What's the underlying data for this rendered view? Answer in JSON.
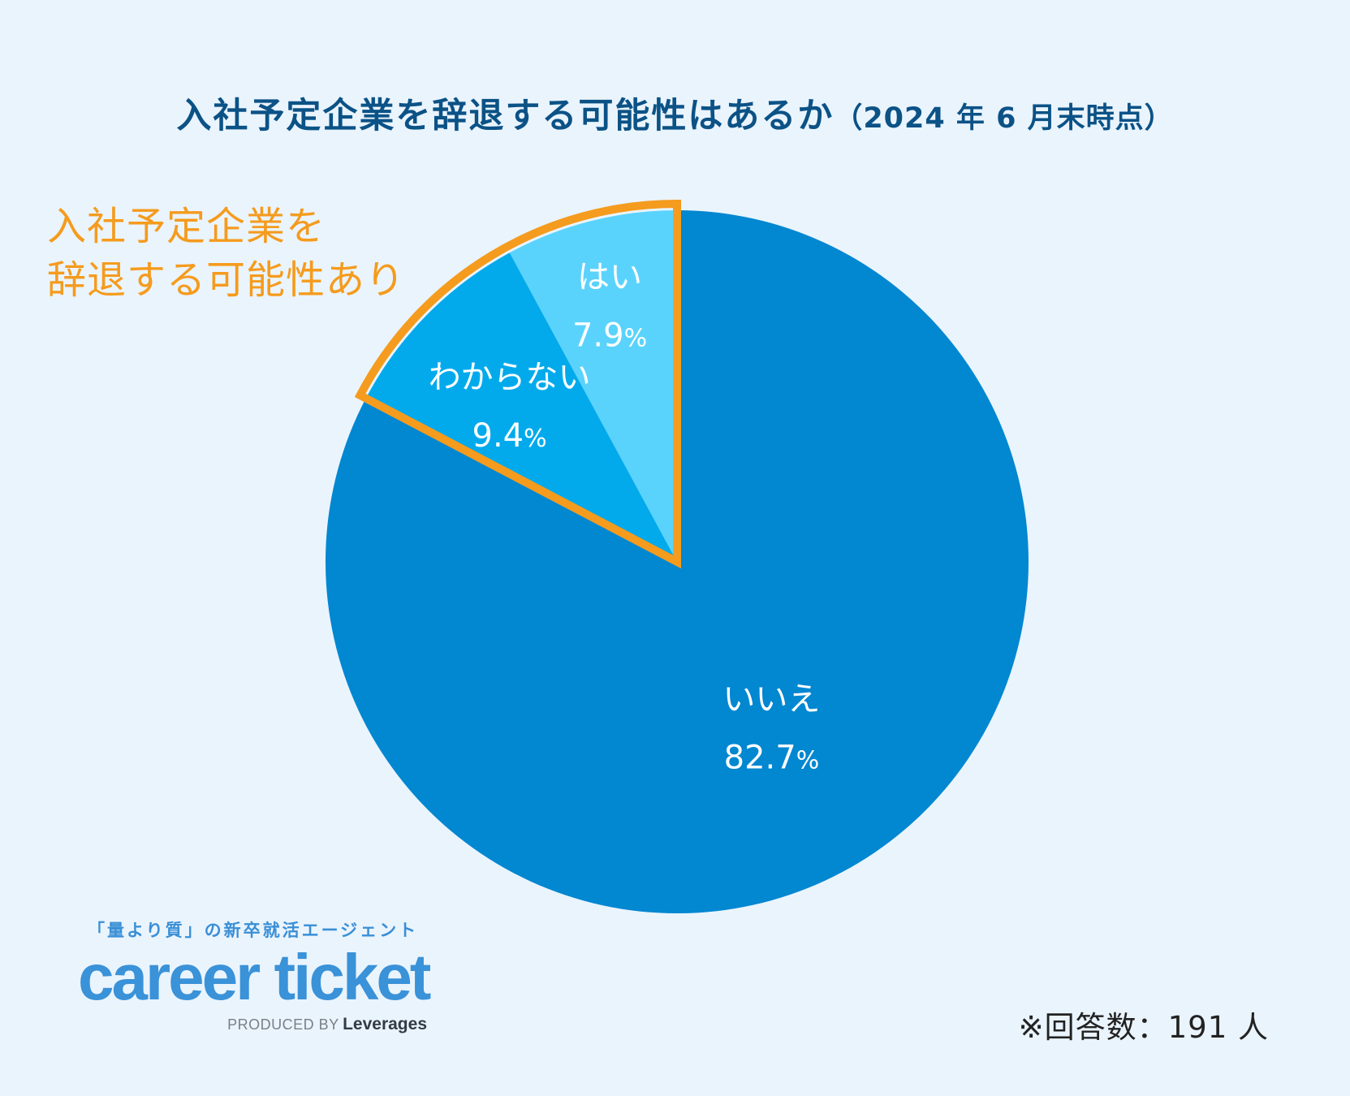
{
  "header": {
    "title_main": "入社予定企業を辞退する可能性はあるか",
    "title_sub": "（2024 年 6 月末時点）"
  },
  "callout": {
    "line1": "入社予定企業を",
    "line2": "辞退する可能性あり",
    "color": "#f59b1d"
  },
  "chart_data": {
    "type": "pie",
    "start_angle": "12 o'clock, counter-clockwise",
    "slices": [
      {
        "label": "はい",
        "value": 7.9,
        "display": "7.9",
        "color": "#5ad3fc"
      },
      {
        "label": "わからない",
        "value": 9.4,
        "display": "9.4",
        "color": "#02aaec"
      },
      {
        "label": "いいえ",
        "value": 82.7,
        "display": "82.7",
        "color": "#0287d1"
      }
    ],
    "unit": "%",
    "highlight": {
      "slices": [
        "はい",
        "わからない"
      ],
      "color": "#f59b1d"
    }
  },
  "brand": {
    "tagline": "「量より質」の新卒就活エージェント",
    "logo": "career ticket",
    "produced_by": "PRODUCED BY",
    "company": "Leverages",
    "logo_color": "#3a92d8"
  },
  "footer": {
    "respondents": "※回答数：191 人"
  }
}
